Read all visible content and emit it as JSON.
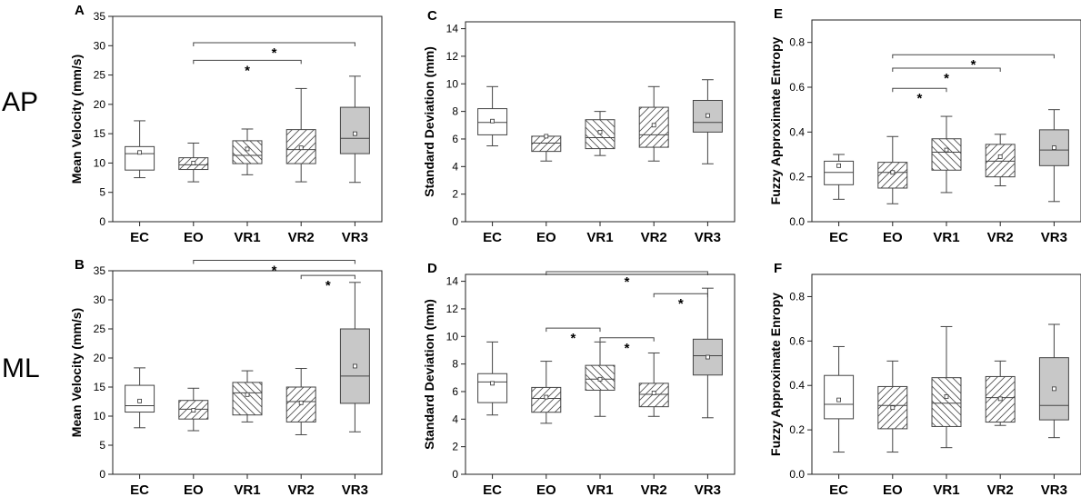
{
  "row_labels": [
    "AP",
    "ML"
  ],
  "colors": {
    "gray_fill": "#c8c8c8",
    "hatch": "#555555",
    "line": "#444444",
    "white": "#ffffff"
  },
  "chart_data": [
    {
      "type": "box",
      "panel": "A",
      "title": "",
      "ylabel": "Mean Velocity (mm/s)",
      "ylim": [
        0,
        35
      ],
      "yticks": [
        0,
        5,
        10,
        15,
        20,
        25,
        30,
        35
      ],
      "categories": [
        "EC",
        "EO",
        "VR1",
        "VR2",
        "VR3"
      ],
      "styles": [
        "white",
        "hatch-back",
        "hatch-fwd",
        "hatch-back",
        "gray"
      ],
      "boxes": [
        {
          "min": 7.5,
          "q1": 8.8,
          "median": 11.6,
          "q3": 12.8,
          "max": 17.2,
          "mean": 11.8
        },
        {
          "min": 6.8,
          "q1": 8.9,
          "median": 9.7,
          "q3": 10.9,
          "max": 13.4,
          "mean": 10.0
        },
        {
          "min": 8.0,
          "q1": 9.9,
          "median": 11.3,
          "q3": 13.8,
          "max": 15.8,
          "mean": 12.4
        },
        {
          "min": 6.8,
          "q1": 9.9,
          "median": 12.3,
          "q3": 15.7,
          "max": 22.7,
          "mean": 12.6
        },
        {
          "min": 6.7,
          "q1": 11.6,
          "median": 14.2,
          "q3": 19.5,
          "max": 24.8,
          "mean": 15.0
        }
      ],
      "brackets": [
        {
          "from": 1,
          "to": 4,
          "y": 30.5,
          "label": "*"
        },
        {
          "from": 1,
          "to": 3,
          "y": 27.5,
          "label": "*"
        }
      ]
    },
    {
      "type": "box",
      "panel": "C",
      "title": "",
      "ylabel": "Standard Deviation (mm)",
      "ylim": [
        0,
        14.5
      ],
      "yticks": [
        0,
        2,
        4,
        6,
        8,
        10,
        12,
        14
      ],
      "categories": [
        "EC",
        "EO",
        "VR1",
        "VR2",
        "VR3"
      ],
      "styles": [
        "white",
        "hatch-back",
        "hatch-fwd",
        "hatch-back",
        "gray"
      ],
      "boxes": [
        {
          "min": 5.5,
          "q1": 6.3,
          "median": 7.2,
          "q3": 8.2,
          "max": 9.8,
          "mean": 7.3
        },
        {
          "min": 4.4,
          "q1": 5.1,
          "median": 5.7,
          "q3": 6.2,
          "max": 6.2,
          "mean": 6.2
        },
        {
          "min": 4.8,
          "q1": 5.3,
          "median": 6.1,
          "q3": 7.4,
          "max": 8.0,
          "mean": 6.5
        },
        {
          "min": 4.4,
          "q1": 5.4,
          "median": 6.3,
          "q3": 8.3,
          "max": 9.8,
          "mean": 7.0
        },
        {
          "min": 4.2,
          "q1": 6.5,
          "median": 7.2,
          "q3": 8.8,
          "max": 10.3,
          "mean": 7.7
        }
      ],
      "brackets": []
    },
    {
      "type": "box",
      "panel": "E",
      "title": "",
      "ylabel": "Fuzzy Approximate Entropy",
      "ylim": [
        0,
        0.9
      ],
      "yticks": [
        0.0,
        0.2,
        0.4,
        0.6,
        0.8
      ],
      "categories": [
        "EC",
        "EO",
        "VR1",
        "VR2",
        "VR3"
      ],
      "styles": [
        "white",
        "hatch-back",
        "hatch-fwd",
        "hatch-back",
        "gray"
      ],
      "boxes": [
        {
          "min": 0.1,
          "q1": 0.165,
          "median": 0.22,
          "q3": 0.27,
          "max": 0.3,
          "mean": 0.25
        },
        {
          "min": 0.08,
          "q1": 0.15,
          "median": 0.22,
          "q3": 0.265,
          "max": 0.38,
          "mean": 0.22
        },
        {
          "min": 0.13,
          "q1": 0.23,
          "median": 0.31,
          "q3": 0.37,
          "max": 0.47,
          "mean": 0.32
        },
        {
          "min": 0.16,
          "q1": 0.2,
          "median": 0.27,
          "q3": 0.345,
          "max": 0.39,
          "mean": 0.29
        },
        {
          "min": 0.09,
          "q1": 0.25,
          "median": 0.32,
          "q3": 0.41,
          "max": 0.5,
          "mean": 0.33
        }
      ],
      "brackets": [
        {
          "from": 1,
          "to": 4,
          "y": 0.745,
          "label": "*"
        },
        {
          "from": 1,
          "to": 3,
          "y": 0.685,
          "label": "*"
        },
        {
          "from": 1,
          "to": 2,
          "y": 0.595,
          "label": "*"
        }
      ]
    },
    {
      "type": "box",
      "panel": "B",
      "title": "",
      "ylabel": "Mean Velocity (mm/s)",
      "ylim": [
        0,
        35
      ],
      "yticks": [
        0,
        5,
        10,
        15,
        20,
        25,
        30,
        35
      ],
      "categories": [
        "EC",
        "EO",
        "VR1",
        "VR2",
        "VR3"
      ],
      "styles": [
        "white",
        "hatch-back",
        "hatch-fwd",
        "hatch-back",
        "gray"
      ],
      "boxes": [
        {
          "min": 8.0,
          "q1": 10.7,
          "median": 11.8,
          "q3": 15.3,
          "max": 18.3,
          "mean": 12.6
        },
        {
          "min": 7.5,
          "q1": 9.5,
          "median": 11.2,
          "q3": 12.7,
          "max": 14.8,
          "mean": 11.0
        },
        {
          "min": 9.0,
          "q1": 10.2,
          "median": 14.0,
          "q3": 15.8,
          "max": 17.8,
          "mean": 13.7
        },
        {
          "min": 6.8,
          "q1": 9.0,
          "median": 12.5,
          "q3": 15.0,
          "max": 18.2,
          "mean": 12.3
        },
        {
          "min": 7.3,
          "q1": 12.2,
          "median": 16.9,
          "q3": 25.0,
          "max": 33.0,
          "mean": 18.6
        }
      ],
      "brackets": [
        {
          "from": 1,
          "to": 4,
          "y": 36.8,
          "label": "*"
        },
        {
          "from": 3,
          "to": 4,
          "y": 34.2,
          "label": "*"
        }
      ]
    },
    {
      "type": "box",
      "panel": "D",
      "title": "",
      "ylabel": "Standard Deviation (mm)",
      "ylim": [
        0,
        14.5
      ],
      "yticks": [
        0,
        2,
        4,
        6,
        8,
        10,
        12,
        14
      ],
      "categories": [
        "EC",
        "EO",
        "VR1",
        "VR2",
        "VR3"
      ],
      "styles": [
        "white",
        "hatch-back",
        "hatch-fwd",
        "hatch-back",
        "gray"
      ],
      "boxes": [
        {
          "min": 4.3,
          "q1": 5.2,
          "median": 6.7,
          "q3": 7.3,
          "max": 9.6,
          "mean": 6.6
        },
        {
          "min": 3.7,
          "q1": 4.5,
          "median": 5.5,
          "q3": 6.3,
          "max": 8.2,
          "mean": 5.6
        },
        {
          "min": 4.2,
          "q1": 6.1,
          "median": 6.9,
          "q3": 7.9,
          "max": 9.6,
          "mean": 6.9
        },
        {
          "min": 4.2,
          "q1": 4.9,
          "median": 5.8,
          "q3": 6.6,
          "max": 8.8,
          "mean": 5.9
        },
        {
          "min": 4.1,
          "q1": 7.2,
          "median": 8.6,
          "q3": 9.8,
          "max": 13.5,
          "mean": 8.5
        }
      ],
      "brackets": [
        {
          "from": 1,
          "to": 4,
          "y": 14.7,
          "label": "*"
        },
        {
          "from": 1,
          "to": 2,
          "y": 10.6,
          "label": "*"
        },
        {
          "from": 2,
          "to": 3,
          "y": 9.9,
          "label": "*"
        },
        {
          "from": 3,
          "to": 4,
          "y": 13.1,
          "label": "*"
        }
      ]
    },
    {
      "type": "box",
      "panel": "F",
      "title": "",
      "ylabel": "Fuzzy Approximate Enropy",
      "ylim": [
        0,
        0.9
      ],
      "yticks": [
        0.0,
        0.2,
        0.4,
        0.6,
        0.8
      ],
      "categories": [
        "EC",
        "EO",
        "VR1",
        "VR2",
        "VR3"
      ],
      "styles": [
        "white",
        "hatch-back",
        "hatch-fwd",
        "hatch-back",
        "gray"
      ],
      "boxes": [
        {
          "min": 0.1,
          "q1": 0.25,
          "median": 0.315,
          "q3": 0.445,
          "max": 0.575,
          "mean": 0.335
        },
        {
          "min": 0.1,
          "q1": 0.205,
          "median": 0.31,
          "q3": 0.395,
          "max": 0.51,
          "mean": 0.3
        },
        {
          "min": 0.12,
          "q1": 0.215,
          "median": 0.32,
          "q3": 0.435,
          "max": 0.665,
          "mean": 0.35
        },
        {
          "min": 0.22,
          "q1": 0.235,
          "median": 0.345,
          "q3": 0.44,
          "max": 0.51,
          "mean": 0.34
        },
        {
          "min": 0.165,
          "q1": 0.245,
          "median": 0.31,
          "q3": 0.525,
          "max": 0.675,
          "mean": 0.385
        }
      ],
      "brackets": []
    }
  ]
}
